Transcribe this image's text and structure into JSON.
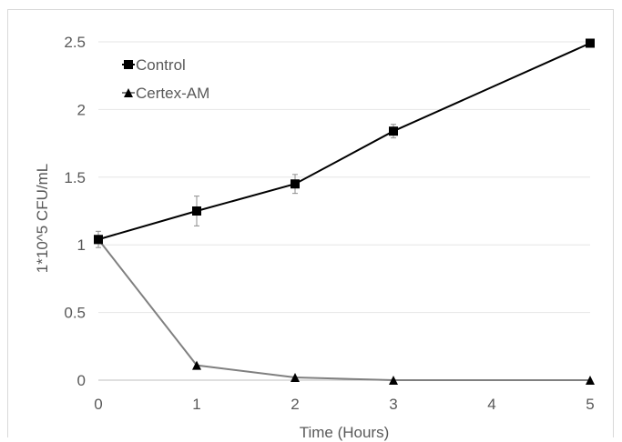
{
  "chart_data": {
    "type": "line",
    "title": "",
    "xlabel": "Time (Hours)",
    "ylabel": "1*10^5 CFU/mL",
    "x": [
      0,
      1,
      2,
      3,
      4,
      5
    ],
    "x_ticks": [
      "0",
      "1",
      "2",
      "3",
      "4",
      "5"
    ],
    "y_ticks": [
      "0",
      "0.5",
      "1",
      "1.5",
      "2",
      "2.5"
    ],
    "xlim": [
      0,
      5
    ],
    "ylim": [
      0,
      2.5
    ],
    "grid": "horizontal",
    "legend_position": "top-left",
    "series": [
      {
        "name": "Control",
        "marker": "square",
        "color": "#000000",
        "points": [
          {
            "x": 0,
            "y": 1.04,
            "err": 0.06
          },
          {
            "x": 1,
            "y": 1.25,
            "err": 0.11
          },
          {
            "x": 2,
            "y": 1.45,
            "err": 0.07
          },
          {
            "x": 3,
            "y": 1.84,
            "err": 0.05
          },
          {
            "x": 5,
            "y": 2.49,
            "err": 0
          }
        ]
      },
      {
        "name": "Certex-AM",
        "marker": "triangle",
        "color": "#808080",
        "points": [
          {
            "x": 0,
            "y": 1.04,
            "err": 0
          },
          {
            "x": 1,
            "y": 0.11,
            "err": 0
          },
          {
            "x": 2,
            "y": 0.02,
            "err": 0
          },
          {
            "x": 3,
            "y": 0.0,
            "err": 0
          },
          {
            "x": 5,
            "y": 0.0,
            "err": 0
          }
        ]
      }
    ]
  }
}
